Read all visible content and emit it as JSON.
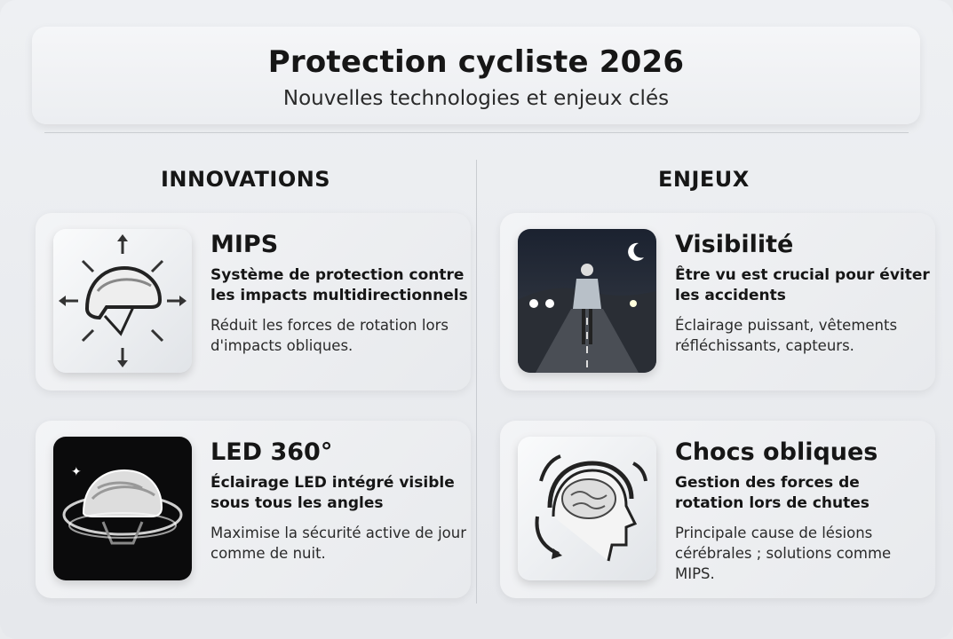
{
  "header": {
    "title": "Protection cycliste 2026",
    "subtitle": "Nouvelles technologies et enjeux clés"
  },
  "columns": [
    {
      "title": "INNOVATIONS",
      "cards": [
        {
          "icon": "helmet-arrows-icon",
          "title": "MIPS",
          "subtitle": "Système de protection contre les impacts multidirectionnels",
          "description": "Réduit les forces de rotation lors d'impacts obliques."
        },
        {
          "icon": "led-helmet-icon",
          "title": "LED 360°",
          "subtitle": "Éclairage LED intégré visible sous tous les angles",
          "description": "Maximise la sécurité active de jour comme de nuit."
        }
      ]
    },
    {
      "title": "ENJEUX",
      "cards": [
        {
          "icon": "night-cyclist-icon",
          "title": "Visibilité",
          "subtitle": "Être vu est crucial pour éviter les accidents",
          "description": "Éclairage puissant, vêtements réfléchissants, capteurs."
        },
        {
          "icon": "brain-helmet-icon",
          "title": "Chocs obliques",
          "subtitle": "Gestion des forces de rotation lors de chutes",
          "description": "Principale cause de lésions cérébrales ; solutions comme MIPS."
        }
      ]
    }
  ]
}
